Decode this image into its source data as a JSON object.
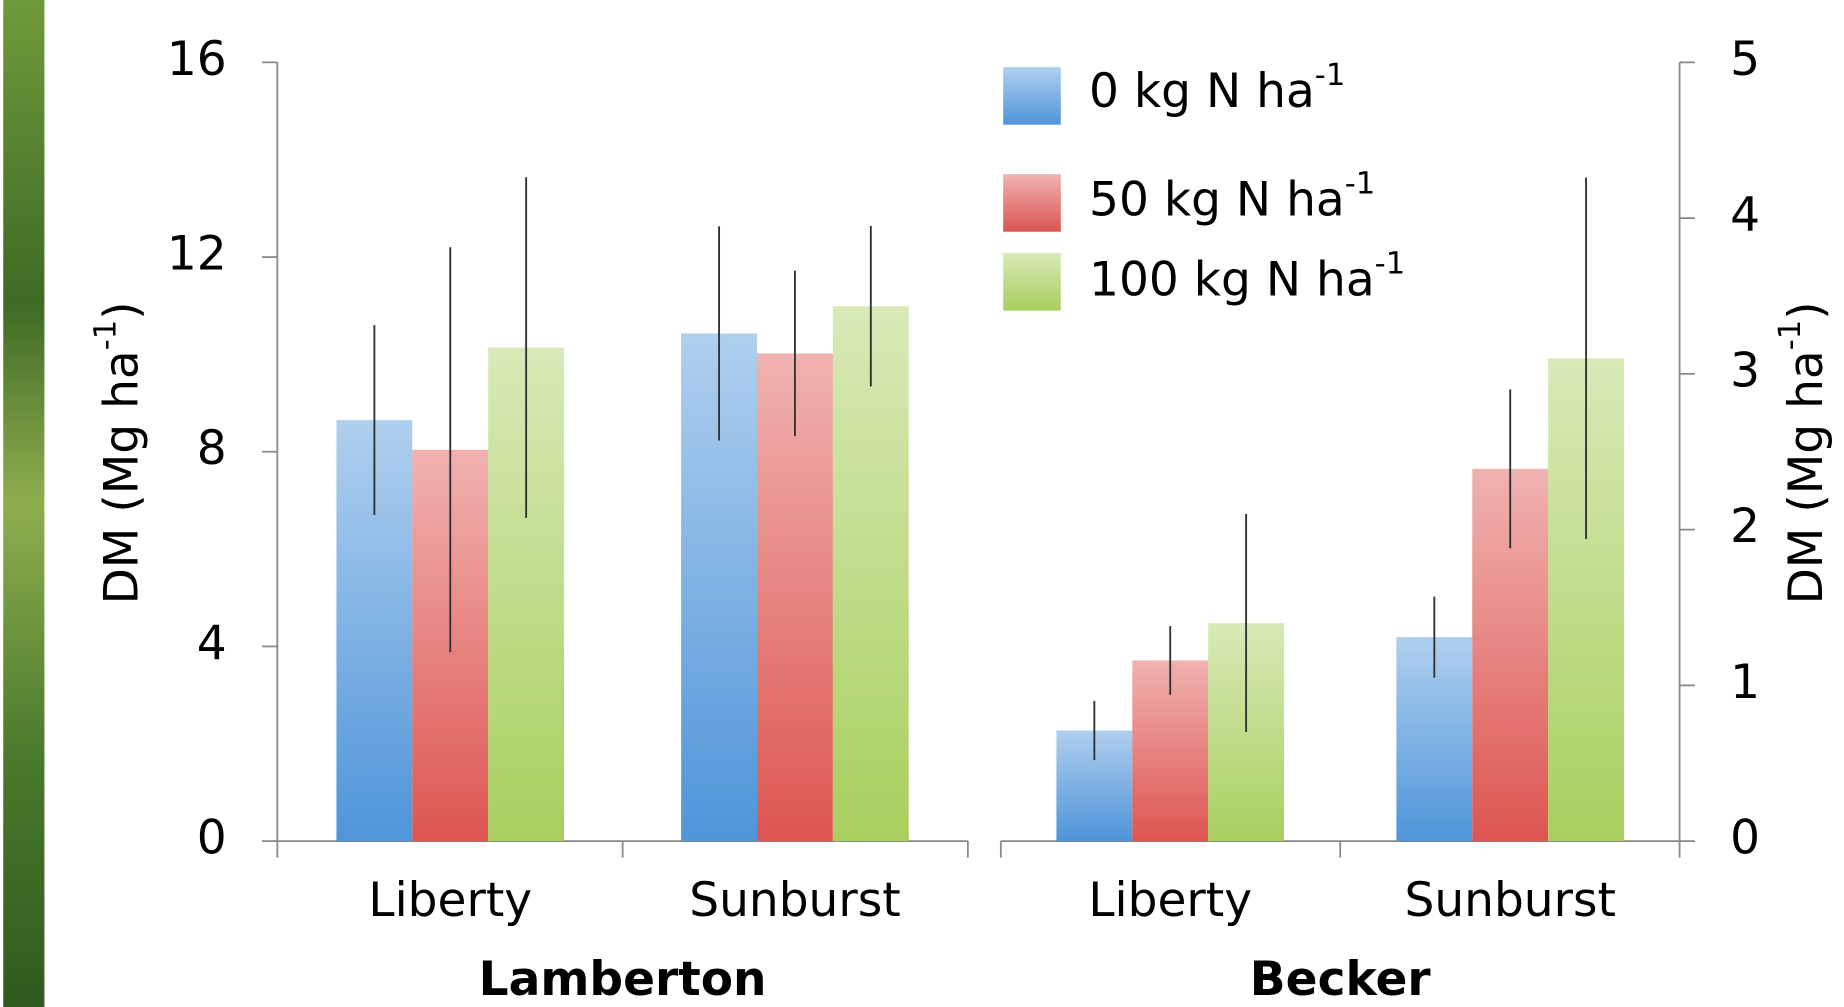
{
  "chart_data": [
    {
      "type": "bar",
      "title": "Lamberton",
      "ylabel": "DM (Mg ha",
      "ylabel_sup": "-1",
      "ylabel_end": ")",
      "categories": [
        "Liberty",
        "Sunburst"
      ],
      "ylim": [
        0,
        16
      ],
      "yticks": [
        0,
        4,
        8,
        12,
        16
      ],
      "series": [
        {
          "name": "0 kg N ha",
          "name_sup": "-1",
          "color": "#4e95d9",
          "values": [
            8.65,
            10.43
          ],
          "errors": [
            1.95,
            2.2
          ]
        },
        {
          "name": "50 kg N ha",
          "name_sup": "-1",
          "color": "#dd5550",
          "values": [
            8.04,
            10.02
          ],
          "errors": [
            4.16,
            1.7
          ]
        },
        {
          "name": "100 kg N ha",
          "name_sup": "-1",
          "color": "#a8cf5e",
          "values": [
            10.14,
            10.99
          ],
          "errors": [
            3.5,
            1.65
          ]
        }
      ]
    },
    {
      "type": "bar",
      "title": "Becker",
      "ylabel": "DM (Mg ha",
      "ylabel_sup": "-1",
      "ylabel_end": ")",
      "categories": [
        "Liberty",
        "Sunburst"
      ],
      "ylim": [
        0,
        5
      ],
      "yticks": [
        0,
        1,
        2,
        3,
        4,
        5
      ],
      "series": [
        {
          "color": "#4e95d9",
          "values": [
            0.71,
            1.31
          ],
          "errors": [
            0.19,
            0.26
          ]
        },
        {
          "color": "#dd5550",
          "values": [
            1.16,
            2.39
          ],
          "errors": [
            0.22,
            0.51
          ]
        },
        {
          "color": "#a8cf5e",
          "values": [
            1.4,
            3.1
          ],
          "errors": [
            0.7,
            1.16
          ]
        }
      ]
    }
  ]
}
